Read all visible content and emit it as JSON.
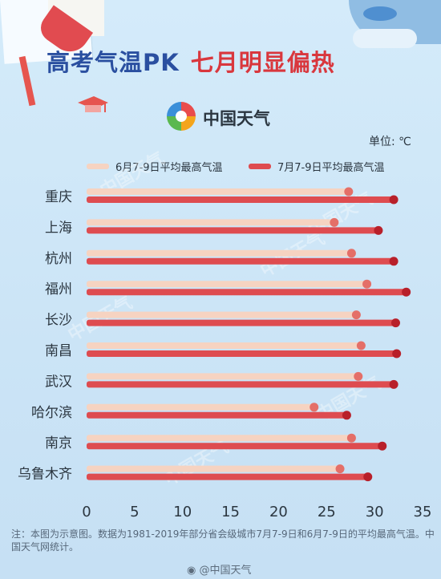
{
  "header": {
    "title_part1": "高考气温PK",
    "title_part2": "七月明显偏热",
    "brand": "中国天气"
  },
  "chart_data": {
    "type": "bar",
    "orientation": "horizontal",
    "unit_label": "单位: ℃",
    "categories": [
      "重庆",
      "上海",
      "杭州",
      "福州",
      "长沙",
      "南昌",
      "武汉",
      "哈尔滨",
      "南京",
      "乌鲁木齐"
    ],
    "series": [
      {
        "name": "6月7-9日平均最高气温",
        "values": [
          27.3,
          25.8,
          27.6,
          29.2,
          28.1,
          28.6,
          28.3,
          23.7,
          27.6,
          26.4
        ],
        "color": "#f6d3c1"
      },
      {
        "name": "7月7-9日平均最高气温",
        "values": [
          32.0,
          30.4,
          32.0,
          33.3,
          32.2,
          32.3,
          32.0,
          27.1,
          30.8,
          29.3
        ],
        "color": "#de4c50"
      }
    ],
    "xlim": [
      0,
      35
    ],
    "xticks": [
      0,
      5,
      10,
      15,
      20,
      25,
      30,
      35
    ],
    "grid": false,
    "legend_position": "top"
  },
  "footer": {
    "note": "注：本图为示意图。数据为1981-2019年部分省会级城市7月7-9日和6月7-9日的平均最高气温。中国天气网统计。",
    "source": "@中国天气"
  },
  "watermark": "中国天气",
  "colors": {
    "title_blue": "#2a4fa0",
    "title_red": "#d9373d",
    "june_bar": "#f6d3c1",
    "july_bar": "#de4c50"
  }
}
